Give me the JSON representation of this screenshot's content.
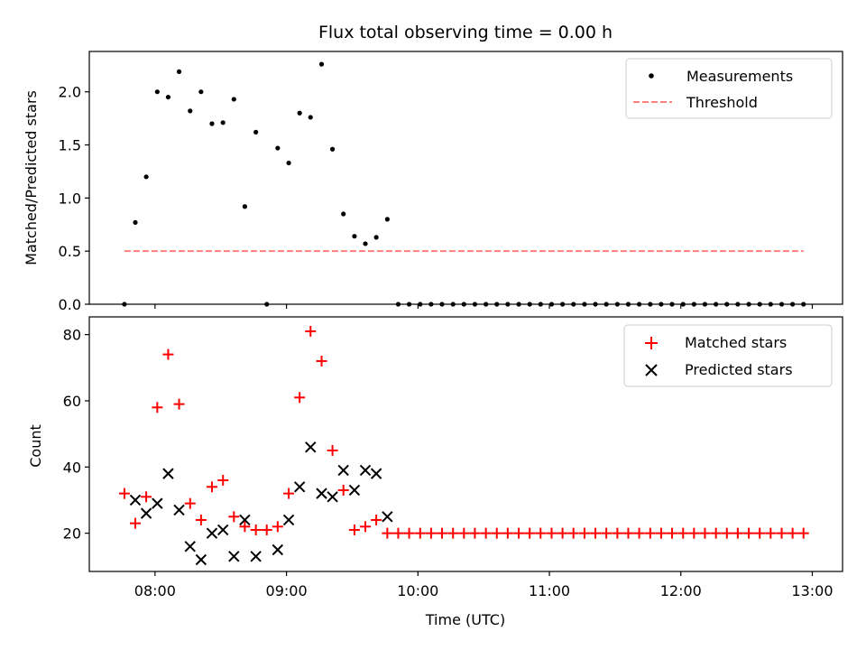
{
  "chart_data": [
    {
      "type": "scatter",
      "panel": "top",
      "title": "Flux total observing time = 0.00 h",
      "xlabel": "",
      "ylabel": "Matched/Predicted stars",
      "xlim": [
        7.5,
        13.23
      ],
      "ylim": [
        0,
        2.38
      ],
      "yticks": [
        0.0,
        0.5,
        1.0,
        1.5,
        2.0
      ],
      "ytick_labels": [
        "0.0",
        "0.5",
        "1.0",
        "1.5",
        "2.0"
      ],
      "legend_position": "top-right",
      "series": [
        {
          "name": "Measurements",
          "marker": "dot",
          "color": "#000000",
          "x": [
            7.767,
            7.85,
            7.933,
            8.017,
            8.1,
            8.183,
            8.267,
            8.35,
            8.433,
            8.517,
            8.6,
            8.683,
            8.767,
            8.85,
            8.933,
            9.017,
            9.1,
            9.183,
            9.267,
            9.35,
            9.433,
            9.517,
            9.6,
            9.683,
            9.767,
            9.85,
            9.933,
            10.017,
            10.1,
            10.183,
            10.267,
            10.35,
            10.433,
            10.517,
            10.6,
            10.683,
            10.767,
            10.85,
            10.933,
            11.017,
            11.1,
            11.183,
            11.267,
            11.35,
            11.433,
            11.517,
            11.6,
            11.683,
            11.767,
            11.85,
            11.933,
            12.017,
            12.1,
            12.183,
            12.267,
            12.35,
            12.433,
            12.517,
            12.6,
            12.683,
            12.767,
            12.85,
            12.933
          ],
          "y": [
            0.0,
            0.77,
            1.2,
            2.0,
            1.95,
            2.19,
            1.82,
            2.0,
            1.7,
            1.71,
            1.93,
            0.92,
            1.62,
            0.0,
            1.47,
            1.33,
            1.8,
            1.76,
            2.26,
            1.46,
            0.85,
            0.64,
            0.57,
            0.63,
            0.8,
            0.0,
            0.0,
            0.0,
            0.0,
            0.0,
            0.0,
            0.0,
            0.0,
            0.0,
            0.0,
            0.0,
            0.0,
            0.0,
            0.0,
            0.0,
            0.0,
            0.0,
            0.0,
            0.0,
            0.0,
            0.0,
            0.0,
            0.0,
            0.0,
            0.0,
            0.0,
            0.0,
            0.0,
            0.0,
            0.0,
            0.0,
            0.0,
            0.0,
            0.0,
            0.0,
            0.0,
            0.0,
            0.0
          ]
        },
        {
          "name": "Threshold",
          "marker": "dashed-line",
          "color": "#ff7f7f",
          "x": [
            7.767,
            12.933
          ],
          "y": [
            0.5,
            0.5
          ]
        }
      ]
    },
    {
      "type": "scatter",
      "panel": "bottom",
      "title": "",
      "xlabel": "Time (UTC)",
      "ylabel": "Count",
      "xlim": [
        7.5,
        13.23
      ],
      "ylim": [
        8.45,
        85.35
      ],
      "xticks": [
        8,
        9,
        10,
        11,
        12,
        13
      ],
      "xtick_labels": [
        "08:00",
        "09:00",
        "10:00",
        "11:00",
        "12:00",
        "13:00"
      ],
      "yticks": [
        20,
        40,
        60,
        80
      ],
      "ytick_labels": [
        "20",
        "40",
        "60",
        "80"
      ],
      "legend_position": "top-right",
      "series": [
        {
          "name": "Matched stars",
          "marker": "plus",
          "color": "#ff0000",
          "x": [
            7.767,
            7.85,
            7.933,
            8.017,
            8.1,
            8.183,
            8.267,
            8.35,
            8.433,
            8.517,
            8.6,
            8.683,
            8.767,
            8.85,
            8.933,
            9.017,
            9.1,
            9.183,
            9.267,
            9.35,
            9.433,
            9.517,
            9.6,
            9.683,
            9.767,
            9.85,
            9.933,
            10.017,
            10.1,
            10.183,
            10.267,
            10.35,
            10.433,
            10.517,
            10.6,
            10.683,
            10.767,
            10.85,
            10.933,
            11.017,
            11.1,
            11.183,
            11.267,
            11.35,
            11.433,
            11.517,
            11.6,
            11.683,
            11.767,
            11.85,
            11.933,
            12.017,
            12.1,
            12.183,
            12.267,
            12.35,
            12.433,
            12.517,
            12.6,
            12.683,
            12.767,
            12.85,
            12.933
          ],
          "y": [
            32,
            23,
            31,
            58,
            74,
            59,
            29,
            24,
            34,
            36,
            25,
            22,
            21,
            21,
            22,
            32,
            61,
            81,
            72,
            45,
            33,
            21,
            22,
            24,
            20,
            20,
            20,
            20,
            20,
            20,
            20,
            20,
            20,
            20,
            20,
            20,
            20,
            20,
            20,
            20,
            20,
            20,
            20,
            20,
            20,
            20,
            20,
            20,
            20,
            20,
            20,
            20,
            20,
            20,
            20,
            20,
            20,
            20,
            20,
            20,
            20,
            20,
            20
          ]
        },
        {
          "name": "Predicted stars",
          "marker": "x",
          "color": "#000000",
          "x": [
            7.85,
            7.933,
            8.017,
            8.1,
            8.183,
            8.267,
            8.35,
            8.433,
            8.517,
            8.6,
            8.683,
            8.767,
            8.933,
            9.017,
            9.1,
            9.183,
            9.267,
            9.35,
            9.433,
            9.517,
            9.6,
            9.683,
            9.767
          ],
          "y": [
            30,
            26,
            29,
            38,
            27,
            16,
            12,
            20,
            21,
            13,
            24,
            13,
            15,
            24,
            34,
            46,
            32,
            31,
            39,
            33,
            39,
            38,
            25
          ]
        }
      ]
    }
  ]
}
